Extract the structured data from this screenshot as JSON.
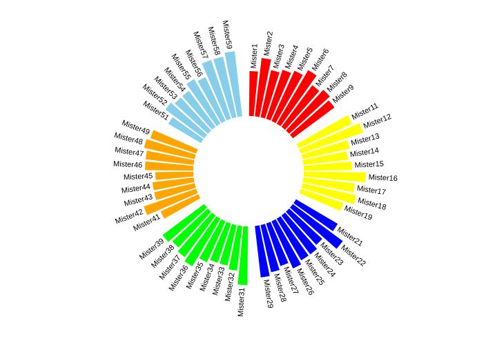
{
  "chart_data": {
    "type": "circular-bar",
    "categories": [
      "Mister1",
      "Mister2",
      "Mister3",
      "Mister4",
      "Mister5",
      "Mister6",
      "Mister7",
      "Mister8",
      "Mister9",
      null,
      "Mister11",
      "Mister12",
      "Mister13",
      "Mister14",
      "Mister15",
      "Mister16",
      "Mister17",
      "Mister18",
      "Mister19",
      null,
      "Mister21",
      "Mister22",
      "Mister23",
      "Mister24",
      "Mister25",
      "Mister26",
      "Mister27",
      "Mister28",
      "Mister29",
      null,
      "Mister31",
      "Mister32",
      "Mister33",
      "Mister34",
      "Mister35",
      "Mister36",
      "Mister37",
      "Mister38",
      "Mister39",
      null,
      "Mister41",
      "Mister42",
      "Mister43",
      "Mister44",
      "Mister45",
      "Mister46",
      "Mister47",
      "Mister48",
      "Mister49",
      null,
      "Mister51",
      "Mister52",
      "Mister53",
      "Mister54",
      "Mister55",
      "Mister56",
      "Mister57",
      "Mister58",
      "Mister59",
      null
    ],
    "values": [
      65,
      85,
      70,
      75,
      80,
      90,
      75,
      80,
      75,
      null,
      85,
      95,
      70,
      65,
      70,
      90,
      75,
      80,
      65,
      null,
      70,
      90,
      65,
      70,
      70,
      75,
      65,
      70,
      75,
      null,
      85,
      65,
      60,
      60,
      65,
      80,
      75,
      70,
      75,
      null,
      60,
      80,
      60,
      60,
      55,
      70,
      70,
      75,
      70,
      null,
      55,
      70,
      65,
      65,
      75,
      70,
      90,
      90,
      95,
      null
    ],
    "colors": [
      "#ff0000",
      "#ff0000",
      "#ff0000",
      "#ff0000",
      "#ff0000",
      "#ff0000",
      "#ff0000",
      "#ff0000",
      "#ff0000",
      null,
      "#ffff00",
      "#ffff00",
      "#ffff00",
      "#ffff00",
      "#ffff00",
      "#ffff00",
      "#ffff00",
      "#ffff00",
      "#ffff00",
      null,
      "#0000ff",
      "#0000ff",
      "#0000ff",
      "#0000ff",
      "#0000ff",
      "#0000ff",
      "#0000ff",
      "#0000ff",
      "#0000ff",
      null,
      "#00ff00",
      "#00ff00",
      "#00ff00",
      "#00ff00",
      "#00ff00",
      "#00ff00",
      "#00ff00",
      "#00ff00",
      "#00ff00",
      null,
      "#ffa500",
      "#ffa500",
      "#ffa500",
      "#ffa500",
      "#ffa500",
      "#ffa500",
      "#ffa500",
      "#ffa500",
      "#ffa500",
      null,
      "#87ceeb",
      "#87ceeb",
      "#87ceeb",
      "#87ceeb",
      "#87ceeb",
      "#87ceeb",
      "#87ceeb",
      "#87ceeb",
      "#87ceeb",
      null
    ]
  }
}
